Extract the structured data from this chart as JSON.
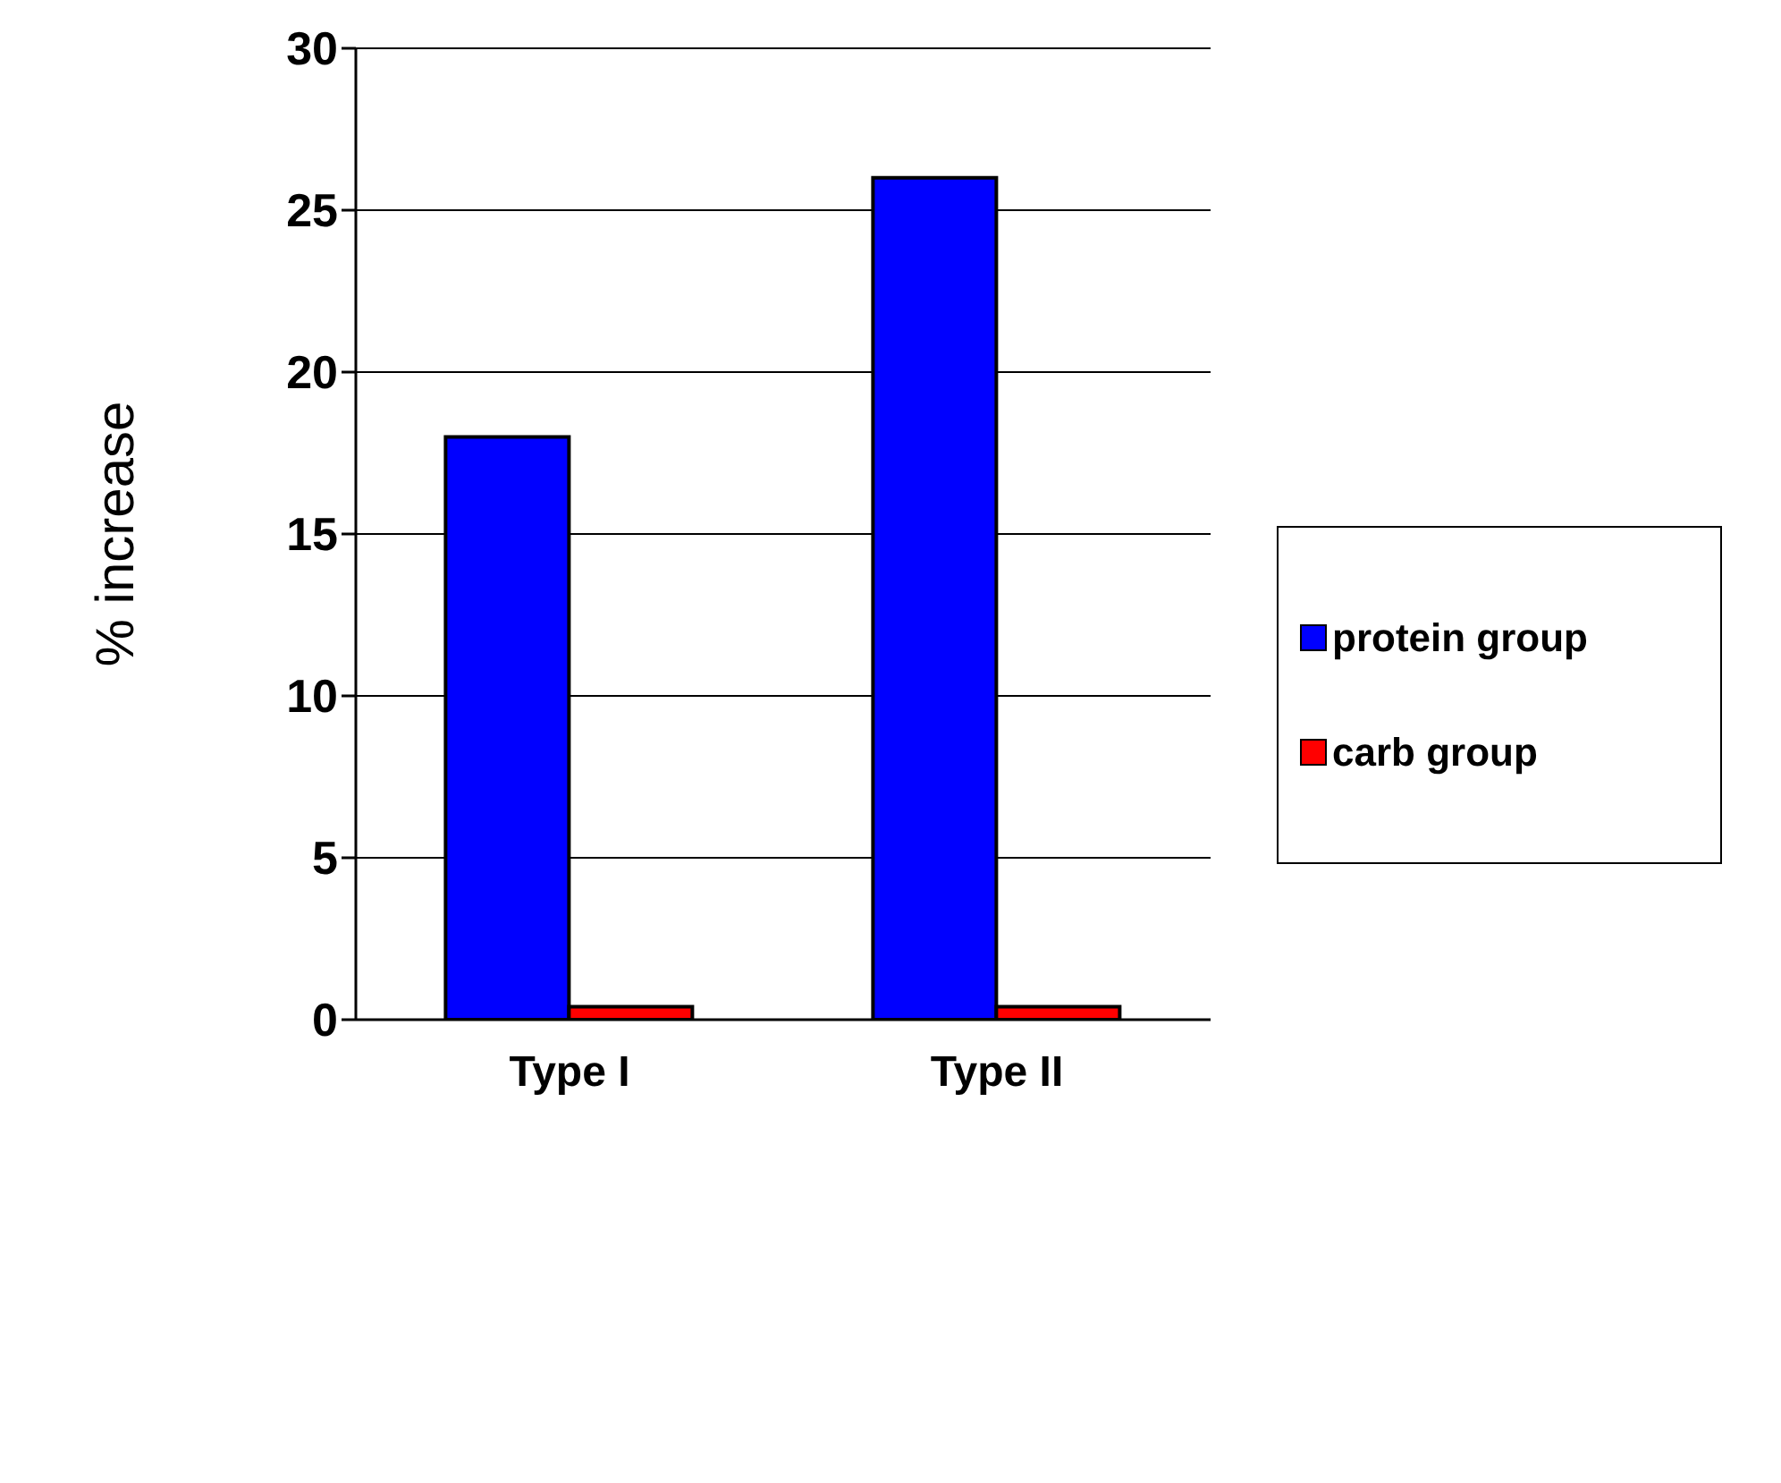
{
  "chart_data": {
    "type": "bar",
    "ylabel": "% increase",
    "categories": [
      "Type I",
      "Type II"
    ],
    "series": [
      {
        "name": "protein group",
        "color": "#0000ff",
        "values": [
          18,
          26
        ]
      },
      {
        "name": "carb group",
        "color": "#ff0000",
        "values": [
          0.4,
          0.4
        ]
      }
    ],
    "ylim": [
      0,
      30
    ],
    "yticks": [
      0,
      5,
      10,
      15,
      20,
      25,
      30
    ],
    "grid": "y",
    "legend": "right"
  }
}
